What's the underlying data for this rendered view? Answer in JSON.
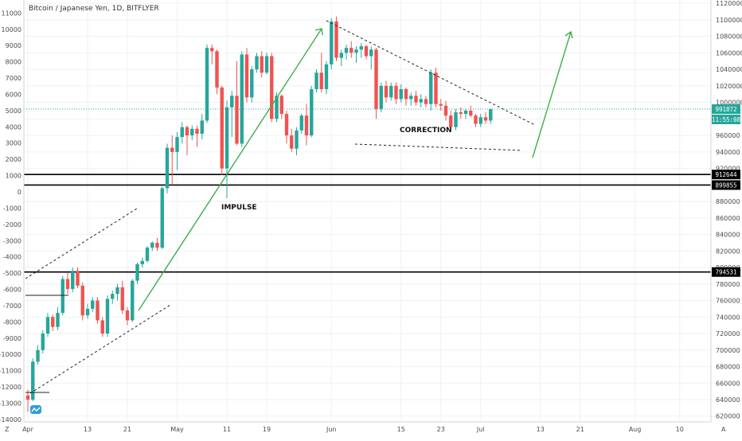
{
  "header": {
    "title": "Bitcoin / Japanese Yen, 1D, BITFLYER"
  },
  "chart_data": {
    "type": "candlestick",
    "title": "Bitcoin / Japanese Yen, 1D, BITFLYER",
    "colors": {
      "up": "#26a69a",
      "down": "#ef5350",
      "grid": "#eef1f5",
      "arrow": "#3fae49"
    },
    "right_axis": {
      "ylim": [
        613000,
        1124000
      ],
      "ticks": [
        620000,
        640000,
        660000,
        680000,
        700000,
        720000,
        740000,
        760000,
        780000,
        800000,
        820000,
        840000,
        860000,
        880000,
        900000,
        920000,
        940000,
        960000,
        980000,
        1000000,
        1020000,
        1040000,
        1060000,
        1080000,
        1100000,
        1120000
      ]
    },
    "left_axis": {
      "ylim": [
        -14150,
        11800
      ],
      "ticks": [
        -14000,
        -13000,
        -12000,
        -11000,
        -10000,
        -9000,
        -8000,
        -7000,
        -6000,
        -5000,
        -4000,
        -3000,
        -2000,
        -1000,
        0,
        1000,
        2000,
        3000,
        4000,
        5000,
        6000,
        7000,
        8000,
        9000,
        10000,
        11000
      ]
    },
    "x_axis": {
      "ticks": [
        {
          "day": 0,
          "label": "Apr"
        },
        {
          "day": 12,
          "label": "13"
        },
        {
          "day": 20,
          "label": "21"
        },
        {
          "day": 30,
          "label": "May"
        },
        {
          "day": 40,
          "label": "11"
        },
        {
          "day": 48,
          "label": "19"
        },
        {
          "day": 61,
          "label": "Jun"
        },
        {
          "day": 75,
          "label": "15"
        },
        {
          "day": 83,
          "label": "23"
        },
        {
          "day": 91,
          "label": "Jul"
        },
        {
          "day": 103,
          "label": "13"
        },
        {
          "day": 111,
          "label": "21"
        },
        {
          "day": 122,
          "label": "Aug"
        },
        {
          "day": 131,
          "label": "10"
        }
      ]
    },
    "price_tags": [
      {
        "value": 991872,
        "label": "991872",
        "style": "green"
      },
      {
        "value": 985000,
        "label": "11:55:08",
        "style": "green"
      },
      {
        "value": 912644,
        "label": "912644",
        "style": "black"
      },
      {
        "value": 899855,
        "label": "899855",
        "style": "black"
      },
      {
        "value": 794531,
        "label": "794531",
        "style": "black"
      }
    ],
    "horizontal_levels": [
      912644,
      899855,
      794531
    ],
    "ohlc": [
      [
        0,
        645000,
        652000,
        625000,
        640000
      ],
      [
        1,
        640000,
        690000,
        638000,
        686000
      ],
      [
        2,
        686000,
        706000,
        682000,
        700000
      ],
      [
        3,
        700000,
        724000,
        696000,
        720000
      ],
      [
        4,
        720000,
        745000,
        716000,
        740000
      ],
      [
        5,
        740000,
        743000,
        723000,
        728000
      ],
      [
        6,
        728000,
        752000,
        724000,
        745000
      ],
      [
        7,
        745000,
        790000,
        742000,
        786000
      ],
      [
        8,
        786000,
        794000,
        768000,
        774000
      ],
      [
        9,
        774000,
        800000,
        770000,
        796000
      ],
      [
        10,
        796000,
        800000,
        775000,
        778000
      ],
      [
        11,
        778000,
        782000,
        736000,
        742000
      ],
      [
        12,
        742000,
        756000,
        738000,
        750000
      ],
      [
        13,
        750000,
        764000,
        746000,
        760000
      ],
      [
        14,
        760000,
        764000,
        732000,
        736000
      ],
      [
        15,
        736000,
        740000,
        716000,
        720000
      ],
      [
        16,
        720000,
        766000,
        716000,
        762000
      ],
      [
        17,
        762000,
        772000,
        756000,
        768000
      ],
      [
        18,
        768000,
        780000,
        760000,
        776000
      ],
      [
        19,
        776000,
        784000,
        744000,
        748000
      ],
      [
        20,
        748000,
        752000,
        730000,
        736000
      ],
      [
        21,
        736000,
        786000,
        734000,
        784000
      ],
      [
        22,
        784000,
        806000,
        780000,
        804000
      ],
      [
        23,
        804000,
        812000,
        800000,
        808000
      ],
      [
        24,
        808000,
        826000,
        806000,
        824000
      ],
      [
        25,
        824000,
        832000,
        820000,
        830000
      ],
      [
        26,
        830000,
        836000,
        820000,
        824000
      ],
      [
        27,
        824000,
        898000,
        822000,
        896000
      ],
      [
        28,
        896000,
        950000,
        890000,
        945000
      ],
      [
        29,
        945000,
        960000,
        900000,
        940000
      ],
      [
        30,
        940000,
        964000,
        918000,
        958000
      ],
      [
        31,
        958000,
        976000,
        950000,
        970000
      ],
      [
        32,
        970000,
        972000,
        936000,
        960000
      ],
      [
        33,
        960000,
        972000,
        954000,
        968000
      ],
      [
        34,
        968000,
        972000,
        946000,
        962000
      ],
      [
        35,
        962000,
        986000,
        955000,
        978000
      ],
      [
        36,
        978000,
        1070000,
        975000,
        1066000
      ],
      [
        37,
        1066000,
        1070000,
        1046000,
        1062000
      ],
      [
        38,
        1062000,
        1064000,
        1010000,
        1018000
      ],
      [
        39,
        1018000,
        1020000,
        912000,
        920000
      ],
      [
        40,
        920000,
        1002000,
        884000,
        994000
      ],
      [
        41,
        994000,
        1014000,
        958000,
        1008000
      ],
      [
        42,
        1008000,
        1050000,
        948000,
        950000
      ],
      [
        43,
        950000,
        1062000,
        946000,
        1058000
      ],
      [
        44,
        1058000,
        1066000,
        1000000,
        1006000
      ],
      [
        45,
        1006000,
        1044000,
        1000000,
        1040000
      ],
      [
        46,
        1040000,
        1060000,
        1036000,
        1056000
      ],
      [
        47,
        1056000,
        1062000,
        1030000,
        1036000
      ],
      [
        48,
        1036000,
        1060000,
        1034000,
        1056000
      ],
      [
        49,
        1056000,
        1060000,
        976000,
        980000
      ],
      [
        50,
        980000,
        1012000,
        976000,
        1008000
      ],
      [
        51,
        1008000,
        1010000,
        980000,
        986000
      ],
      [
        52,
        986000,
        990000,
        950000,
        960000
      ],
      [
        53,
        960000,
        968000,
        940000,
        944000
      ],
      [
        54,
        944000,
        970000,
        936000,
        966000
      ],
      [
        55,
        966000,
        986000,
        962000,
        984000
      ],
      [
        56,
        984000,
        998000,
        948000,
        960000
      ],
      [
        57,
        960000,
        1020000,
        958000,
        1016000
      ],
      [
        58,
        1016000,
        1040000,
        1012000,
        1036000
      ],
      [
        59,
        1036000,
        1060000,
        1012000,
        1016000
      ],
      [
        60,
        1016000,
        1050000,
        1010000,
        1046000
      ],
      [
        61,
        1046000,
        1102000,
        1040000,
        1098000
      ],
      [
        62,
        1098000,
        1104000,
        1050000,
        1054000
      ],
      [
        63,
        1054000,
        1064000,
        1044000,
        1060000
      ],
      [
        64,
        1060000,
        1070000,
        1052000,
        1066000
      ],
      [
        65,
        1066000,
        1074000,
        1054000,
        1060000
      ],
      [
        66,
        1060000,
        1068000,
        1048000,
        1064000
      ],
      [
        67,
        1064000,
        1072000,
        1054000,
        1068000
      ],
      [
        68,
        1068000,
        1070000,
        1052000,
        1056000
      ],
      [
        69,
        1056000,
        1068000,
        1040000,
        1064000
      ],
      [
        70,
        1064000,
        1066000,
        980000,
        992000
      ],
      [
        71,
        992000,
        1024000,
        988000,
        1020000
      ],
      [
        72,
        1020000,
        1026000,
        1000000,
        1006000
      ],
      [
        73,
        1006000,
        1024000,
        1002000,
        1020000
      ],
      [
        74,
        1020000,
        1024000,
        998000,
        1004000
      ],
      [
        75,
        1004000,
        1022000,
        1000000,
        1016000
      ],
      [
        76,
        1016000,
        1018000,
        996000,
        1004000
      ],
      [
        77,
        1004000,
        1012000,
        996000,
        1008000
      ],
      [
        78,
        1008000,
        1014000,
        996000,
        1000000
      ],
      [
        79,
        1000000,
        1010000,
        994000,
        1004000
      ],
      [
        80,
        1004000,
        1008000,
        994000,
        998000
      ],
      [
        81,
        998000,
        1040000,
        990000,
        1036000
      ],
      [
        82,
        1036000,
        1042000,
        994000,
        998000
      ],
      [
        83,
        998000,
        1004000,
        990000,
        996000
      ],
      [
        84,
        996000,
        1002000,
        978000,
        984000
      ],
      [
        85,
        984000,
        990000,
        966000,
        970000
      ],
      [
        86,
        970000,
        992000,
        966000,
        988000
      ],
      [
        87,
        988000,
        994000,
        980000,
        986000
      ],
      [
        88,
        986000,
        992000,
        980000,
        990000
      ],
      [
        89,
        990000,
        996000,
        982000,
        984000
      ],
      [
        90,
        984000,
        986000,
        970000,
        974000
      ],
      [
        91,
        974000,
        986000,
        970000,
        982000
      ],
      [
        92,
        982000,
        988000,
        974000,
        978000
      ],
      [
        93,
        978000,
        992000,
        974000,
        991872
      ]
    ]
  },
  "annotations": {
    "impulse": "IMPULSE",
    "correction": "CORRECTION"
  },
  "corner_labels": {
    "left": "Z",
    "right": "A"
  }
}
